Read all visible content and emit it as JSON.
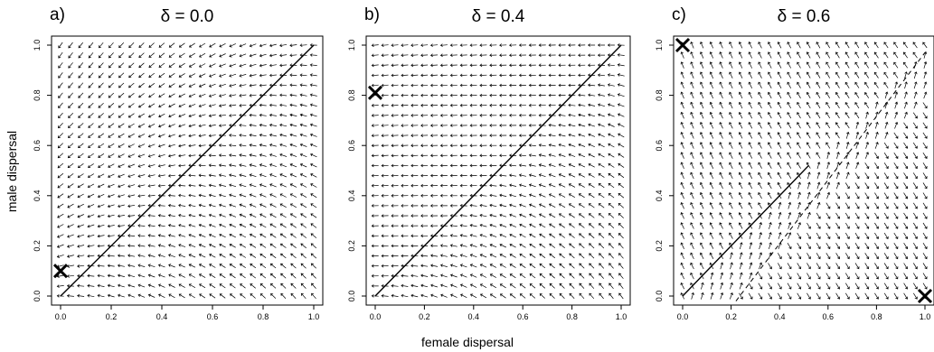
{
  "xlabel": "female dispersal",
  "ylabel": "male dispersal",
  "chart_data": [
    {
      "type": "vector-field",
      "panel_label": "a)",
      "title": "δ = 0.0",
      "xlim": [
        0,
        1
      ],
      "ylim": [
        0,
        1
      ],
      "xticks": [
        "0.0",
        "0.2",
        "0.4",
        "0.6",
        "0.8",
        "1.0"
      ],
      "yticks": [
        "0.0",
        "0.2",
        "0.4",
        "0.6",
        "0.8",
        "1.0"
      ],
      "grid_step": 0.04,
      "equilibria": [
        {
          "x": 0.0,
          "y": 0.1
        }
      ],
      "solid_line": [
        [
          0,
          0
        ],
        [
          1,
          1
        ]
      ],
      "dashed_line": null
    },
    {
      "type": "vector-field",
      "panel_label": "b)",
      "title": "δ = 0.4",
      "xlim": [
        0,
        1
      ],
      "ylim": [
        0,
        1
      ],
      "xticks": [
        "0.0",
        "0.2",
        "0.4",
        "0.6",
        "0.8",
        "1.0"
      ],
      "yticks": [
        "0.0",
        "0.2",
        "0.4",
        "0.6",
        "0.8",
        "1.0"
      ],
      "grid_step": 0.04,
      "equilibria": [
        {
          "x": 0.0,
          "y": 0.81
        }
      ],
      "solid_line": [
        [
          0,
          0
        ],
        [
          1,
          1
        ]
      ],
      "dashed_line": null
    },
    {
      "type": "vector-field",
      "panel_label": "c)",
      "title": "δ = 0.6",
      "xlim": [
        0,
        1
      ],
      "ylim": [
        0,
        1
      ],
      "xticks": [
        "0.0",
        "0.2",
        "0.4",
        "0.6",
        "0.8",
        "1.0"
      ],
      "yticks": [
        "0.0",
        "0.2",
        "0.4",
        "0.6",
        "0.8",
        "1.0"
      ],
      "grid_step": 0.04,
      "equilibria": [
        {
          "x": 0.0,
          "y": 1.0
        },
        {
          "x": 1.0,
          "y": 0.0
        }
      ],
      "solid_line": [
        [
          0,
          0
        ],
        [
          0.52,
          0.52
        ]
      ],
      "dashed_line": [
        [
          0.22,
          -0.02
        ],
        [
          1,
          0.97
        ]
      ]
    }
  ]
}
